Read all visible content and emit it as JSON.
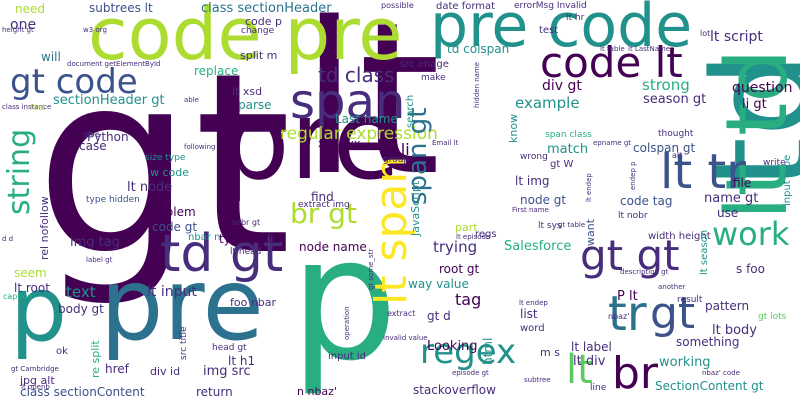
{
  "palette": {
    "p0": "#440154",
    "p1": "#472d7b",
    "p2": "#3b528b",
    "p3": "#2c728e",
    "p4": "#21918c",
    "p5": "#28ae80",
    "p6": "#5ec962",
    "p7": "#addc30",
    "p8": "#fde725"
  },
  "words": [
    {
      "text": "gt",
      "size": 250,
      "color": "#440154",
      "vertical": false
    },
    {
      "text": "lt",
      "size": 210,
      "color": "#440154",
      "vertical": false
    },
    {
      "text": "td",
      "size": 135,
      "color": "#21918c",
      "vertical": true
    },
    {
      "text": "p",
      "size": 170,
      "color": "#28ae80",
      "vertical": false
    },
    {
      "text": "pre",
      "size": 110,
      "color": "#440154",
      "vertical": false
    },
    {
      "text": "pre",
      "size": 100,
      "color": "#2c728e",
      "vertical": false
    },
    {
      "text": "p",
      "size": 90,
      "color": "#21918c",
      "vertical": false
    },
    {
      "text": "code pre",
      "size": 72,
      "color": "#addc30",
      "vertical": false
    },
    {
      "text": "pre code",
      "size": 60,
      "color": "#21918c",
      "vertical": false
    },
    {
      "text": "lt td",
      "size": 85,
      "color": "#28ae80",
      "vertical": true
    },
    {
      "text": "lt tr",
      "size": 48,
      "color": "#3b528b",
      "vertical": false
    },
    {
      "text": "td gt",
      "size": 52,
      "color": "#472d7b",
      "vertical": false
    },
    {
      "text": "span",
      "size": 48,
      "color": "#472d7b",
      "vertical": false
    },
    {
      "text": "code lt",
      "size": 42,
      "color": "#440154",
      "vertical": false
    },
    {
      "text": "gt code",
      "size": 34,
      "color": "#3b528b",
      "vertical": false
    },
    {
      "text": "lt span",
      "size": 44,
      "color": "#fde725",
      "vertical": true
    },
    {
      "text": "gt gt",
      "size": 42,
      "color": "#472d7b",
      "vertical": false
    },
    {
      "text": "work",
      "size": 32,
      "color": "#28ae80",
      "vertical": false
    },
    {
      "text": "tr",
      "size": 48,
      "color": "#2c728e",
      "vertical": false
    },
    {
      "text": "gt",
      "size": 44,
      "color": "#3b528b",
      "vertical": false
    },
    {
      "text": "br",
      "size": 44,
      "color": "#440154",
      "vertical": false
    },
    {
      "text": "regex",
      "size": 34,
      "color": "#21918c",
      "vertical": false
    },
    {
      "text": "br gt",
      "size": 28,
      "color": "#addc30",
      "vertical": false
    },
    {
      "text": "string",
      "size": 30,
      "color": "#28ae80",
      "vertical": true
    },
    {
      "text": "td class",
      "size": 20,
      "color": "#472d7b",
      "vertical": false
    },
    {
      "text": "regular expression",
      "size": 17,
      "color": "#addc30",
      "vertical": false
    },
    {
      "text": "lt li",
      "size": 16,
      "color": "#440154",
      "vertical": false
    },
    {
      "text": "lt",
      "size": 40,
      "color": "#5ec962",
      "vertical": false
    },
    {
      "text": "span gt",
      "size": 26,
      "color": "#2c728e",
      "vertical": true
    },
    {
      "text": "lt script",
      "size": 14,
      "color": "#472d7b",
      "vertical": false
    },
    {
      "text": "example",
      "size": 15,
      "color": "#21918c",
      "vertical": false
    },
    {
      "text": "div gt",
      "size": 14,
      "color": "#440154",
      "vertical": false
    },
    {
      "text": "strong",
      "size": 15,
      "color": "#28ae80",
      "vertical": false
    },
    {
      "text": "season gt",
      "size": 13,
      "color": "#472d7b",
      "vertical": false
    },
    {
      "text": "question",
      "size": 14,
      "color": "#440154",
      "vertical": false
    },
    {
      "text": "li gt",
      "size": 13,
      "color": "#440154",
      "vertical": false
    },
    {
      "text": "sectionHeader gt",
      "size": 13,
      "color": "#21918c",
      "vertical": false
    },
    {
      "text": "class sectionHeader",
      "size": 13,
      "color": "#2c728e",
      "vertical": false
    },
    {
      "text": "subtrees lt",
      "size": 12,
      "color": "#3b528b",
      "vertical": false
    },
    {
      "text": "code p",
      "size": 11,
      "color": "#472d7b",
      "vertical": false
    },
    {
      "text": "need",
      "size": 12,
      "color": "#addc30",
      "vertical": false
    },
    {
      "text": "one",
      "size": 14,
      "color": "#472d7b",
      "vertical": false
    },
    {
      "text": "will",
      "size": 12,
      "color": "#2c728e",
      "vertical": false
    },
    {
      "text": "split m",
      "size": 11,
      "color": "#472d7b",
      "vertical": false
    },
    {
      "text": "replace",
      "size": 12,
      "color": "#28ae80",
      "vertical": false
    },
    {
      "text": "src image",
      "size": 10,
      "color": "#472d7b",
      "vertical": false
    },
    {
      "text": "td colspan",
      "size": 12,
      "color": "#21918c",
      "vertical": false
    },
    {
      "text": "lt xsd",
      "size": 11,
      "color": "#472d7b",
      "vertical": false
    },
    {
      "text": "parse",
      "size": 12,
      "color": "#21918c",
      "vertical": false
    },
    {
      "text": "Last name",
      "size": 12,
      "color": "#21918c",
      "vertical": false
    },
    {
      "text": "Python",
      "size": 12,
      "color": "#472d7b",
      "vertical": false
    },
    {
      "text": "case",
      "size": 12,
      "color": "#472d7b",
      "vertical": false
    },
    {
      "text": "xxx xxx",
      "size": 11,
      "color": "#440154",
      "vertical": false
    },
    {
      "text": "size type",
      "size": 9,
      "color": "#21918c",
      "vertical": false
    },
    {
      "text": "w code",
      "size": 11,
      "color": "#21918c",
      "vertical": false
    },
    {
      "text": "lt node",
      "size": 13,
      "color": "#472d7b",
      "vertical": false
    },
    {
      "text": "problem",
      "size": 12,
      "color": "#440154",
      "vertical": false
    },
    {
      "text": "code gt",
      "size": 12,
      "color": "#3b528b",
      "vertical": false
    },
    {
      "text": "find",
      "size": 12,
      "color": "#472d7b",
      "vertical": false
    },
    {
      "text": "extract img",
      "size": 9,
      "color": "#472d7b",
      "vertical": false
    },
    {
      "text": "match",
      "size": 13,
      "color": "#21918c",
      "vertical": false
    },
    {
      "text": "lt img",
      "size": 12,
      "color": "#472d7b",
      "vertical": false
    },
    {
      "text": "node gt",
      "size": 12,
      "color": "#3b528b",
      "vertical": false
    },
    {
      "text": "colspan gt",
      "size": 12,
      "color": "#3b528b",
      "vertical": false
    },
    {
      "text": "code tag",
      "size": 12,
      "color": "#3b528b",
      "vertical": false
    },
    {
      "text": "name gt",
      "size": 13,
      "color": "#472d7b",
      "vertical": false
    },
    {
      "text": "use",
      "size": 12,
      "color": "#472d7b",
      "vertical": false
    },
    {
      "text": "file",
      "size": 12,
      "color": "#440154",
      "vertical": false
    },
    {
      "text": "type hidden",
      "size": 9,
      "color": "#3b528b",
      "vertical": false
    },
    {
      "text": "img tag",
      "size": 13,
      "color": "#472d7b",
      "vertical": false
    },
    {
      "text": "type text",
      "size": 12,
      "color": "#440154",
      "vertical": false
    },
    {
      "text": "node name",
      "size": 12,
      "color": "#440154",
      "vertical": false
    },
    {
      "text": "trying",
      "size": 15,
      "color": "#472d7b",
      "vertical": false
    },
    {
      "text": "Salesforce",
      "size": 13,
      "color": "#28ae80",
      "vertical": false
    },
    {
      "text": "width height",
      "size": 10,
      "color": "#472d7b",
      "vertical": false
    },
    {
      "text": "s foo",
      "size": 12,
      "color": "#472d7b",
      "vertical": false
    },
    {
      "text": "root gt",
      "size": 12,
      "color": "#440154",
      "vertical": false
    },
    {
      "text": "way value",
      "size": 12,
      "color": "#21918c",
      "vertical": false
    },
    {
      "text": "tag",
      "size": 16,
      "color": "#440154",
      "vertical": false
    },
    {
      "text": "text",
      "size": 15,
      "color": "#21918c",
      "vertical": false
    },
    {
      "text": "lt input",
      "size": 14,
      "color": "#472d7b",
      "vertical": false
    },
    {
      "text": "foo nbar",
      "size": 11,
      "color": "#472d7b",
      "vertical": false
    },
    {
      "text": "body gt",
      "size": 12,
      "color": "#472d7b",
      "vertical": false
    },
    {
      "text": "seem",
      "size": 12,
      "color": "#addc30",
      "vertical": false
    },
    {
      "text": "lt root",
      "size": 12,
      "color": "#472d7b",
      "vertical": false
    },
    {
      "text": "gt d",
      "size": 12,
      "color": "#472d7b",
      "vertical": false
    },
    {
      "text": "list",
      "size": 12,
      "color": "#472d7b",
      "vertical": false
    },
    {
      "text": "Looking",
      "size": 13,
      "color": "#440154",
      "vertical": false
    },
    {
      "text": "P lt",
      "size": 13,
      "color": "#440154",
      "vertical": false
    },
    {
      "text": "pattern",
      "size": 12,
      "color": "#472d7b",
      "vertical": false
    },
    {
      "text": "lt body",
      "size": 13,
      "color": "#472d7b",
      "vertical": false
    },
    {
      "text": "something",
      "size": 12,
      "color": "#472d7b",
      "vertical": false
    },
    {
      "text": "working",
      "size": 13,
      "color": "#21918c",
      "vertical": false
    },
    {
      "text": "lt label",
      "size": 12,
      "color": "#472d7b",
      "vertical": false
    },
    {
      "text": "lt div",
      "size": 13,
      "color": "#472d7b",
      "vertical": false
    },
    {
      "text": "SectionContent gt",
      "size": 12,
      "color": "#21918c",
      "vertical": false
    },
    {
      "text": "img src",
      "size": 13,
      "color": "#472d7b",
      "vertical": false
    },
    {
      "text": "lt h1",
      "size": 12,
      "color": "#472d7b",
      "vertical": false
    },
    {
      "text": "href",
      "size": 12,
      "color": "#472d7b",
      "vertical": false
    },
    {
      "text": "div id",
      "size": 11,
      "color": "#472d7b",
      "vertical": false
    },
    {
      "text": "jpg alt",
      "size": 11,
      "color": "#472d7b",
      "vertical": false
    },
    {
      "text": "class sectionContent",
      "size": 12,
      "color": "#3b528b",
      "vertical": false
    },
    {
      "text": "return",
      "size": 12,
      "color": "#472d7b",
      "vertical": false
    },
    {
      "text": "n nbaz'",
      "size": 11,
      "color": "#440154",
      "vertical": false
    },
    {
      "text": "stackoverflow",
      "size": 12,
      "color": "#472d7b",
      "vertical": false
    },
    {
      "text": "input id",
      "size": 10,
      "color": "#472d7b",
      "vertical": false
    },
    {
      "text": "m s",
      "size": 11,
      "color": "#472d7b",
      "vertical": false
    },
    {
      "text": "word",
      "size": 10,
      "color": "#472d7b",
      "vertical": false
    },
    {
      "text": "html",
      "size": 12,
      "color": "#21918c",
      "vertical": true
    },
    {
      "text": "JavaScript",
      "size": 11,
      "color": "#21918c",
      "vertical": true
    },
    {
      "text": "rel nofollow",
      "size": 11,
      "color": "#472d7b",
      "vertical": true
    },
    {
      "text": "input type",
      "size": 10,
      "color": "#21918c",
      "vertical": true
    },
    {
      "text": "re split",
      "size": 11,
      "color": "#28ae80",
      "vertical": true
    },
    {
      "text": "lt season",
      "size": 10,
      "color": "#21918c",
      "vertical": true
    },
    {
      "text": "know",
      "size": 11,
      "color": "#21918c",
      "vertical": true
    },
    {
      "text": "search",
      "size": 10,
      "color": "#21918c",
      "vertical": true
    },
    {
      "text": "want",
      "size": 11,
      "color": "#3b528b",
      "vertical": true
    },
    {
      "text": "part",
      "size": 11,
      "color": "#addc30",
      "vertical": false
    },
    {
      "text": "regs",
      "size": 10,
      "color": "#472d7b",
      "vertical": false
    },
    {
      "text": "nbar n",
      "size": 10,
      "color": "#21918c",
      "vertical": false
    },
    {
      "text": "lt head",
      "size": 9,
      "color": "#472d7b",
      "vertical": false
    },
    {
      "text": "lt nobr",
      "size": 9,
      "color": "#472d7b",
      "vertical": false
    },
    {
      "text": "lt sys",
      "size": 9,
      "color": "#472d7b",
      "vertical": false
    },
    {
      "text": "head gt",
      "size": 9,
      "color": "#472d7b",
      "vertical": false
    },
    {
      "text": "src title",
      "size": 9,
      "color": "#472d7b",
      "vertical": true
    },
    {
      "text": "Email lt",
      "size": 7,
      "color": "#472d7b",
      "vertical": false
    },
    {
      "text": "group",
      "size": 9,
      "color": "#472d7b",
      "vertical": false
    },
    {
      "text": "wrong",
      "size": 9,
      "color": "#472d7b",
      "vertical": false
    },
    {
      "text": "span class",
      "size": 9,
      "color": "#28ae80",
      "vertical": false
    },
    {
      "text": "thought",
      "size": 9,
      "color": "#472d7b",
      "vertical": false
    },
    {
      "text": "alt",
      "size": 8,
      "color": "#472d7b",
      "vertical": false
    },
    {
      "text": "write",
      "size": 9,
      "color": "#472d7b",
      "vertical": false
    },
    {
      "text": "date format",
      "size": 10,
      "color": "#472d7b",
      "vertical": false
    },
    {
      "text": "errorMsg Invalid",
      "size": 9,
      "color": "#472d7b",
      "vertical": false
    },
    {
      "text": "possible",
      "size": 8,
      "color": "#472d7b",
      "vertical": false
    },
    {
      "text": "change",
      "size": 9,
      "color": "#472d7b",
      "vertical": false
    },
    {
      "text": "make",
      "size": 9,
      "color": "#472d7b",
      "vertical": false
    },
    {
      "text": "test",
      "size": 10,
      "color": "#472d7b",
      "vertical": false
    },
    {
      "text": "lt hr",
      "size": 9,
      "color": "#472d7b",
      "vertical": false
    },
    {
      "text": "lot",
      "size": 8,
      "color": "#472d7b",
      "vertical": false
    },
    {
      "text": "gt W",
      "size": 10,
      "color": "#472d7b",
      "vertical": false
    },
    {
      "text": "result",
      "size": 9,
      "color": "#472d7b",
      "vertical": false
    },
    {
      "text": "gt lots",
      "size": 9,
      "color": "#5ec962",
      "vertical": false
    },
    {
      "text": "line",
      "size": 9,
      "color": "#472d7b",
      "vertical": false
    },
    {
      "text": "another",
      "size": 7,
      "color": "#472d7b",
      "vertical": false
    },
    {
      "text": "subtree",
      "size": 7,
      "color": "#472d7b",
      "vertical": false
    },
    {
      "text": "ok",
      "size": 10,
      "color": "#472d7b",
      "vertical": false
    },
    {
      "text": "caption",
      "size": 8,
      "color": "#28ae80",
      "vertical": false
    },
    {
      "text": "label gt",
      "size": 7,
      "color": "#472d7b",
      "vertical": false
    },
    {
      "text": "d d",
      "size": 7,
      "color": "#472d7b",
      "vertical": false
    },
    {
      "text": "document getElementById",
      "size": 7,
      "color": "#472d7b",
      "vertical": false
    },
    {
      "text": "class instance",
      "size": 7,
      "color": "#472d7b",
      "vertical": false
    },
    {
      "text": "height gt",
      "size": 7,
      "color": "#472d7b",
      "vertical": false
    },
    {
      "text": "following",
      "size": 7,
      "color": "#472d7b",
      "vertical": false
    },
    {
      "text": "give",
      "size": 8,
      "color": "#472d7b",
      "vertical": false
    },
    {
      "text": "first",
      "size": 8,
      "color": "#addc30",
      "vertical": false
    },
    {
      "text": "able",
      "size": 7,
      "color": "#472d7b",
      "vertical": false
    },
    {
      "text": "First name",
      "size": 7,
      "color": "#472d7b",
      "vertical": false
    },
    {
      "text": "nobr gt",
      "size": 8,
      "color": "#472d7b",
      "vertical": false
    },
    {
      "text": "extract",
      "size": 8,
      "color": "#472d7b",
      "vertical": false
    },
    {
      "text": "Invalid value",
      "size": 7,
      "color": "#472d7b",
      "vertical": false
    },
    {
      "text": "gt Cambridge",
      "size": 7,
      "color": "#472d7b",
      "vertical": false
    },
    {
      "text": "gt some_str",
      "size": 7,
      "color": "#472d7b",
      "vertical": true
    },
    {
      "text": "operation",
      "size": 7,
      "color": "#472d7b",
      "vertical": true
    },
    {
      "text": "lt endep",
      "size": 7,
      "color": "#472d7b",
      "vertical": false
    },
    {
      "text": "episode gt",
      "size": 7,
      "color": "#472d7b",
      "vertical": false
    },
    {
      "text": "nbaz' code",
      "size": 7,
      "color": "#472d7b",
      "vertical": false
    },
    {
      "text": "description gt",
      "size": 7,
      "color": "#472d7b",
      "vertical": false
    },
    {
      "text": "nbaz'",
      "size": 8,
      "color": "#472d7b",
      "vertical": false
    },
    {
      "text": "lt episode",
      "size": 7,
      "color": "#472d7b",
      "vertical": false
    },
    {
      "text": "gt table",
      "size": 7,
      "color": "#472d7b",
      "vertical": false
    },
    {
      "text": "lt LastName",
      "size": 7,
      "color": "#472d7b",
      "vertical": false
    },
    {
      "text": "lt table",
      "size": 7,
      "color": "#472d7b",
      "vertical": false
    },
    {
      "text": "epname gt",
      "size": 7,
      "color": "#472d7b",
      "vertical": false
    },
    {
      "text": "w3 org",
      "size": 7,
      "color": "#472d7b",
      "vertical": false
    },
    {
      "text": "lt openb",
      "size": 7,
      "color": "#472d7b",
      "vertical": false
    },
    {
      "text": "hidden name",
      "size": 7,
      "color": "#472d7b",
      "vertical": true
    },
    {
      "text": "endep p",
      "size": 7,
      "color": "#472d7b",
      "vertical": true
    },
    {
      "text": "lt endep",
      "size": 7,
      "color": "#472d7b",
      "vertical": true
    }
  ]
}
